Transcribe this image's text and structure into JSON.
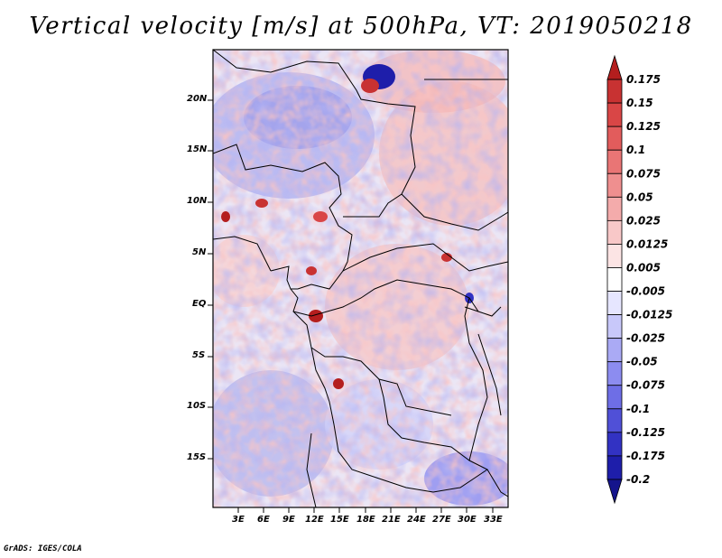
{
  "title": "Vertical velocity [m/s] at 500hPa, VT: 2019050218",
  "credit": "GrADS: IGES/COLA",
  "map": {
    "lat_labels": [
      "20N",
      "15N",
      "10N",
      "5N",
      "EQ",
      "5S",
      "10S",
      "15S"
    ],
    "lon_labels": [
      "3E",
      "6E",
      "9E",
      "12E",
      "15E",
      "18E",
      "21E",
      "24E",
      "27E",
      "30E",
      "33E"
    ]
  },
  "colorbar": {
    "labels": [
      "0.175",
      "0.15",
      "0.125",
      "0.1",
      "0.075",
      "0.05",
      "0.025",
      "0.0125",
      "0.005",
      "-0.005",
      "-0.0125",
      "-0.025",
      "-0.05",
      "-0.075",
      "-0.1",
      "-0.125",
      "-0.175",
      "-0.2"
    ],
    "colors": [
      "#b41e1e",
      "#c83232",
      "#d94646",
      "#e25c5c",
      "#e97575",
      "#ef8f8f",
      "#f4abab",
      "#f8c8c8",
      "#fce4e4",
      "#ffffff",
      "#e6e6ff",
      "#c8c8fa",
      "#aaaaf5",
      "#8c8cf0",
      "#6e6ee6",
      "#5050d7",
      "#3232c3",
      "#1e1eaa",
      "#14148c"
    ]
  }
}
